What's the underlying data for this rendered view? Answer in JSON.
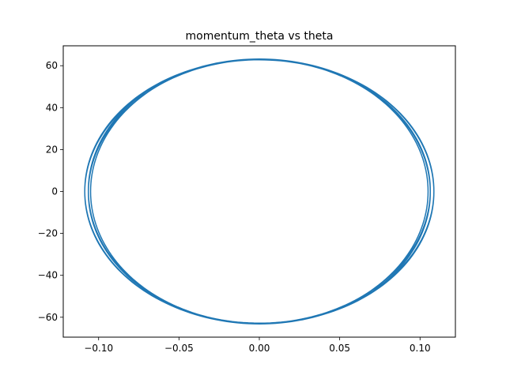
{
  "chart_data": {
    "type": "line",
    "title": "momentum_theta vs theta",
    "xlabel": "",
    "ylabel": "",
    "xlim": [
      -0.122,
      0.122
    ],
    "ylim": [
      -69.5,
      69.5
    ],
    "xticks": [
      -0.1,
      -0.05,
      0.0,
      0.05,
      0.1
    ],
    "xtick_labels": [
      "−0.10",
      "−0.05",
      "0.00",
      "0.05",
      "0.10"
    ],
    "yticks": [
      -60,
      -40,
      -20,
      0,
      20,
      40,
      60
    ],
    "ytick_labels": [
      "−60",
      "−40",
      "−20",
      "0",
      "20",
      "40",
      "60"
    ],
    "grid": false,
    "series": [
      {
        "color": "#1f77b4",
        "shape": "phase-space ellipse traced repeatedly with slowly varying amplitude",
        "theta_amplitude_range": [
          0.105,
          0.109
        ],
        "momentum_amplitude_range": [
          -63,
          63
        ],
        "loops": 20
      }
    ]
  }
}
